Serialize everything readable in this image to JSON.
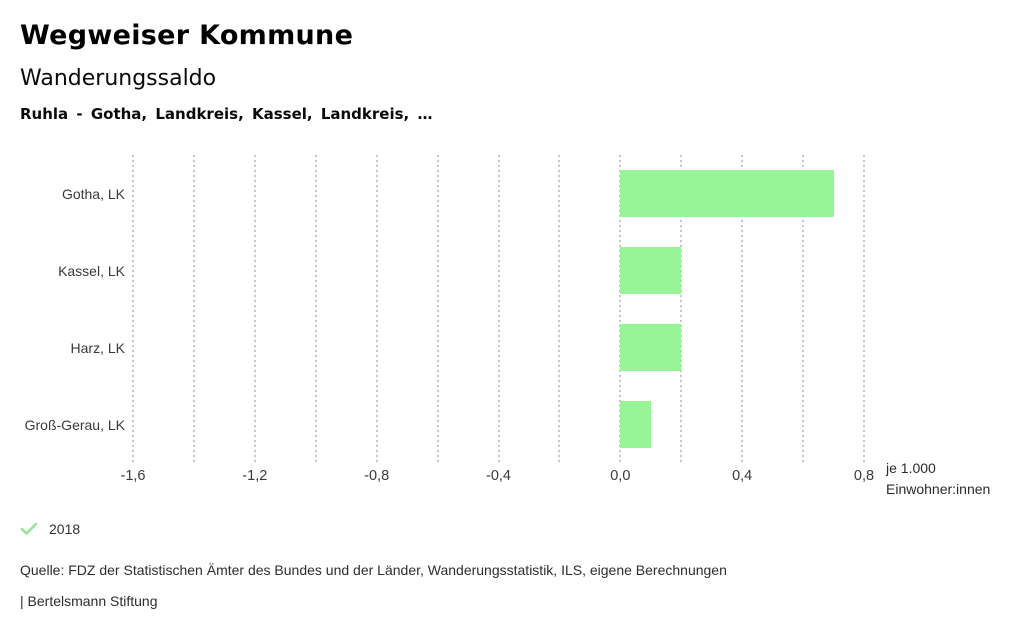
{
  "header": {
    "title": "Wegweiser Kommune",
    "subtitle": "Wanderungssaldo",
    "selection": "Ruhla - Gotha, Landkreis, Kassel, Landkreis, …"
  },
  "chart_data": {
    "type": "bar",
    "orientation": "horizontal",
    "title": "Wanderungssaldo",
    "categories": [
      "Gotha, LK",
      "Kassel, LK",
      "Harz, LK",
      "Groß-Gerau, LK"
    ],
    "series": [
      {
        "name": "2018",
        "values": [
          0.7,
          0.2,
          0.2,
          0.1
        ]
      }
    ],
    "xlim": [
      -1.6,
      0.8
    ],
    "gridline_step": 0.2,
    "grid": "vertical-dashed",
    "x_ticks": [
      {
        "value": -1.6,
        "label": "-1,6"
      },
      {
        "value": -1.2,
        "label": "-1,2"
      },
      {
        "value": -0.8,
        "label": "-0,8"
      },
      {
        "value": -0.4,
        "label": "-0,4"
      },
      {
        "value": 0.0,
        "label": "0,0"
      },
      {
        "value": 0.4,
        "label": "0,4"
      },
      {
        "value": 0.8,
        "label": "0,8"
      }
    ],
    "unit_label": [
      "je 1.000",
      "Einwohner:innen"
    ],
    "bar_color": "#98f597",
    "legend_position": "bottom-left"
  },
  "legend": {
    "icon": "check-icon",
    "icon_color": "#90e590",
    "year_label": "2018"
  },
  "footer": {
    "source": "Quelle: FDZ der Statistischen Ämter des Bundes und der Länder, Wanderungsstatistik, ILS, eigene Berechnungen",
    "attribution": "| Bertelsmann Stiftung"
  }
}
